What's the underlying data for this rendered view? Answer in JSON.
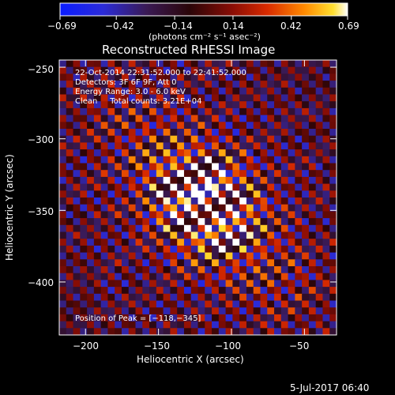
{
  "chart_data": {
    "type": "heatmap",
    "title": "Reconstructed RHESSI Image",
    "xlabel": "Heliocentric X (arcsec)",
    "ylabel": "Heliocentric Y (arcsec)",
    "xlim": [
      -218,
      -28
    ],
    "ylim": [
      -437,
      -245
    ],
    "x_ticks": [
      -200,
      -150,
      -100,
      -50
    ],
    "x_tick_labels": [
      "−200",
      "−150",
      "−100",
      "−50"
    ],
    "y_ticks": [
      -250,
      -300,
      -350,
      -400
    ],
    "y_tick_labels": [
      "−250",
      "−300",
      "−350",
      "−400"
    ],
    "colorbar": {
      "colormap": "red-temperature (blue → purple → red → yellow → white)",
      "range": [
        -0.69,
        0.69
      ],
      "tick_labels": [
        "−0.69",
        "−0.42",
        "−0.14",
        "0.14",
        "0.42",
        "0.69"
      ],
      "units": "(photons cm⁻² s⁻¹ asec⁻²)"
    },
    "annotations": {
      "time_range": "22-Oct-2014 22:31:52.000 to 22:41:52.000",
      "detectors": "Detectors: 3F 6F 9F, Att 0",
      "energy_range": "Energy Range: 3.0 - 6.0 keV",
      "method_counts": "Clean     Total counts: 3.21E+04",
      "peak_position": "Position of Peak = [−118,−345]"
    },
    "peak": [
      -118,
      -345
    ],
    "stripes_angle_deg": 38,
    "grid": false
  },
  "footer": {
    "date": "5-Jul-2017 06:40"
  }
}
